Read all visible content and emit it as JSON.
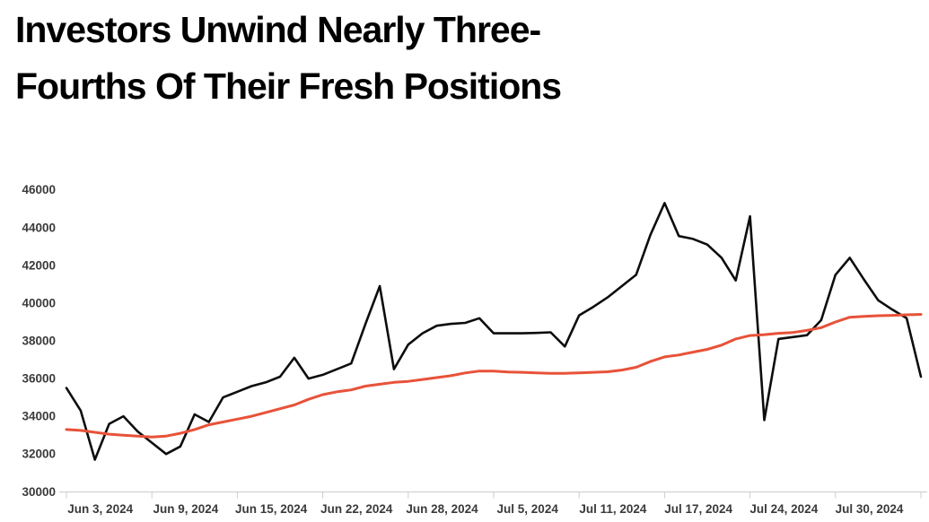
{
  "title": {
    "text": "Investors Unwind Nearly Three-Fourths Of Their Fresh Positions",
    "lines": [
      "Investors Unwind Nearly Three-",
      "Fourths Of Their Fresh Positions"
    ],
    "color": "#000000"
  },
  "chart_data": {
    "type": "line",
    "title": "Investors Unwind Nearly Three-Fourths Of Their Fresh Positions",
    "grid": false,
    "legend": "none",
    "background": "#ffffff",
    "axis_color": "#cccccc",
    "tick_label_color": "#3a3a3a",
    "ylim": [
      30000,
      46000
    ],
    "y_ticks": [
      30000,
      32000,
      34000,
      36000,
      38000,
      40000,
      42000,
      44000,
      46000
    ],
    "x_tick_indices": [
      0,
      6,
      12,
      18,
      24,
      30,
      36,
      42,
      48,
      54,
      60
    ],
    "x_labels": [
      {
        "index": 2,
        "text": "Jun 3, 2024"
      },
      {
        "index": 8,
        "text": "Jun 9, 2024"
      },
      {
        "index": 14,
        "text": "Jun 15, 2024"
      },
      {
        "index": 20,
        "text": "Jun 22, 2024"
      },
      {
        "index": 26,
        "text": "Jun 28, 2024"
      },
      {
        "index": 32,
        "text": "Jul 5, 2024"
      },
      {
        "index": 38,
        "text": "Jul 11, 2024"
      },
      {
        "index": 44,
        "text": "Jul 17, 2024"
      },
      {
        "index": 50,
        "text": "Jul 24, 2024"
      },
      {
        "index": 56,
        "text": "Jul 30, 2024"
      }
    ],
    "series": [
      {
        "name": "black-line",
        "color": "#0d0d0d",
        "stroke_width": 2.6,
        "values": [
          35500,
          34300,
          31700,
          33600,
          34000,
          33200,
          32600,
          32000,
          32400,
          34100,
          33700,
          35000,
          35300,
          35600,
          35800,
          36100,
          37100,
          36000,
          36200,
          36500,
          36800,
          38900,
          40900,
          36500,
          37800,
          38400,
          38800,
          38900,
          38950,
          39200,
          38400,
          38400,
          38400,
          38420,
          38450,
          37700,
          39350,
          39800,
          40300,
          40900,
          41500,
          43600,
          45300,
          43550,
          43400,
          43100,
          42400,
          41200,
          44600,
          33800,
          38100,
          38200,
          38300,
          39100,
          41500,
          42400,
          41250,
          40150,
          39650,
          39200,
          36100
        ]
      },
      {
        "name": "orange-line",
        "color": "#e85239",
        "stroke_width": 3,
        "values": [
          33300,
          33250,
          33150,
          33050,
          33000,
          32950,
          32900,
          32950,
          33100,
          33300,
          33550,
          33700,
          33850,
          34000,
          34200,
          34400,
          34600,
          34900,
          35150,
          35300,
          35400,
          35600,
          35700,
          35800,
          35850,
          35950,
          36050,
          36150,
          36300,
          36400,
          36400,
          36350,
          36330,
          36300,
          36280,
          36280,
          36300,
          36330,
          36360,
          36450,
          36600,
          36900,
          37150,
          37250,
          37400,
          37550,
          37770,
          38100,
          38280,
          38330,
          38400,
          38440,
          38550,
          38700,
          39000,
          39250,
          39300,
          39330,
          39350,
          39380,
          39400
        ]
      }
    ]
  }
}
